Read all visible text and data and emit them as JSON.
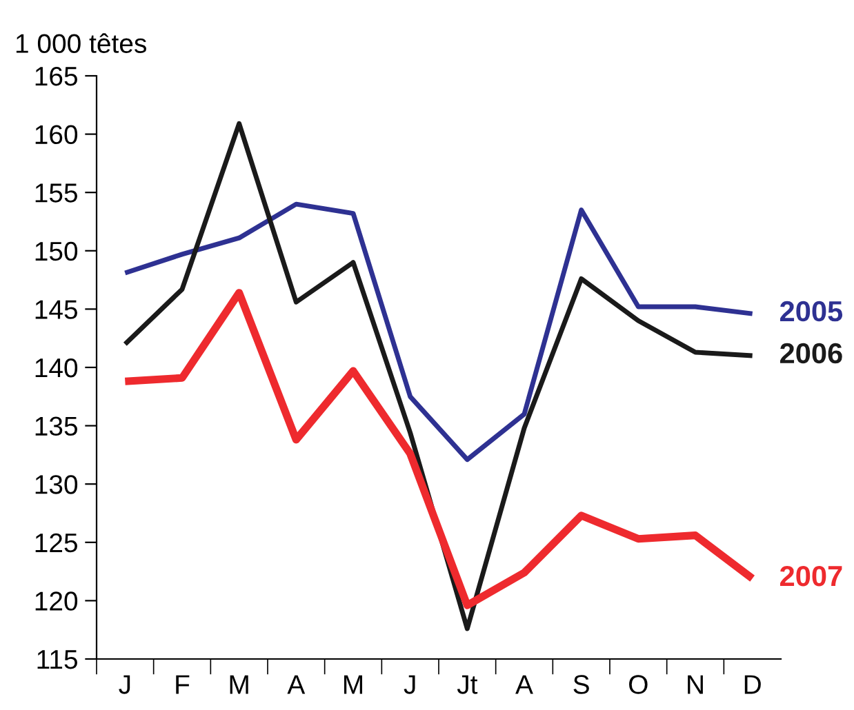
{
  "chart_data": {
    "type": "line",
    "ylabel": "1 000 têtes",
    "categories": [
      "J",
      "F",
      "M",
      "A",
      "M",
      "J",
      "Jt",
      "A",
      "S",
      "O",
      "N",
      "D"
    ],
    "series": [
      {
        "name": "2005",
        "color": "#2e3192",
        "values": [
          148.1,
          149.7,
          151.1,
          154.0,
          153.2,
          137.5,
          132.1,
          136.0,
          153.5,
          145.2,
          145.2,
          144.6
        ]
      },
      {
        "name": "2006",
        "color": "#1a1a1a",
        "values": [
          142.0,
          146.7,
          160.9,
          145.6,
          149.0,
          134.4,
          117.6,
          134.8,
          147.6,
          144.0,
          141.3,
          141.0
        ]
      },
      {
        "name": "2007",
        "color": "#ee2a2e",
        "values": [
          138.8,
          139.1,
          146.4,
          133.8,
          139.7,
          132.6,
          119.6,
          122.4,
          127.3,
          125.3,
          125.6,
          121.9
        ]
      }
    ],
    "ylim": [
      115,
      165
    ],
    "yticks": [
      115,
      120,
      125,
      130,
      135,
      140,
      145,
      150,
      155,
      160,
      165
    ],
    "grid": false,
    "legend": false,
    "marker": "none",
    "line_style": "solid"
  }
}
